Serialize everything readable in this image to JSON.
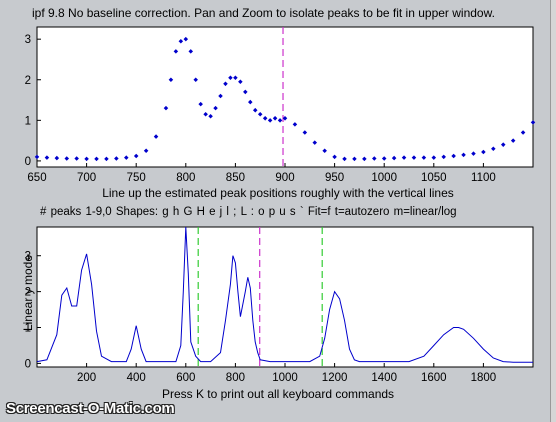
{
  "window": {
    "top_title": "ipf 9.8 No baseline correction. Pan and Zoom to isolate peaks to be fit in upper window.",
    "top_xlabel": "Line up the estimated peak positions roughly with the vertical lines",
    "bottom_title": "# peaks 1-9,0   Shapes: g h G H e j l ; L : o p u s `   Fit=f   t=autozero   m=linear/log",
    "bottom_xlabel": "Press K to print out all keyboard commands",
    "bottom_ylabel": "Linear y mode",
    "watermark": "Screencast-O-Matic.com"
  },
  "colors": {
    "background": "#c7cace",
    "axes_bg": "#ffffff",
    "signal": "#0000cc",
    "marker_magenta": "#cc33cc",
    "marker_green": "#33cc33"
  },
  "chart_data": [
    {
      "type": "scatter",
      "xlim": [
        650,
        1150
      ],
      "ylim": [
        -0.15,
        3.3
      ],
      "xticks": [
        650,
        700,
        750,
        800,
        850,
        900,
        950,
        1000,
        1050,
        1100
      ],
      "yticks": [
        0,
        1,
        2,
        3
      ],
      "vlines": [
        {
          "x": 898,
          "color": "magenta"
        }
      ],
      "series": [
        {
          "x": [
            650,
            660,
            670,
            680,
            690,
            700,
            710,
            720,
            730,
            740,
            750,
            760,
            770,
            780,
            785,
            790,
            795,
            800,
            805,
            810,
            815,
            820,
            825,
            830,
            835,
            840,
            845,
            850,
            855,
            860,
            865,
            870,
            875,
            880,
            885,
            890,
            895,
            900,
            910,
            920,
            930,
            940,
            950,
            960,
            970,
            980,
            990,
            1000,
            1010,
            1020,
            1030,
            1040,
            1050,
            1060,
            1070,
            1080,
            1090,
            1100,
            1110,
            1120,
            1130,
            1140,
            1150
          ],
          "y": [
            0.1,
            0.08,
            0.07,
            0.06,
            0.06,
            0.05,
            0.05,
            0.05,
            0.06,
            0.08,
            0.12,
            0.25,
            0.6,
            1.3,
            2.0,
            2.7,
            2.95,
            3.0,
            2.7,
            2.0,
            1.4,
            1.15,
            1.1,
            1.3,
            1.6,
            1.9,
            2.05,
            2.05,
            1.95,
            1.7,
            1.45,
            1.25,
            1.15,
            1.05,
            1.0,
            1.05,
            1.0,
            1.05,
            0.9,
            0.7,
            0.45,
            0.25,
            0.1,
            0.05,
            0.05,
            0.05,
            0.06,
            0.06,
            0.07,
            0.08,
            0.08,
            0.08,
            0.08,
            0.1,
            0.12,
            0.15,
            0.18,
            0.22,
            0.3,
            0.4,
            0.5,
            0.7,
            0.95
          ]
        }
      ]
    },
    {
      "type": "line",
      "xlim": [
        0,
        2000
      ],
      "ylim": [
        -0.1,
        3.8
      ],
      "xticks": [
        200,
        400,
        600,
        800,
        1000,
        1200,
        1400,
        1600,
        1800
      ],
      "yticks": [
        0,
        1,
        2,
        3
      ],
      "ylabel": "Linear y mode",
      "vlines": [
        {
          "x": 650,
          "color": "green"
        },
        {
          "x": 898,
          "color": "magenta"
        },
        {
          "x": 1150,
          "color": "green"
        }
      ],
      "series": [
        {
          "x": [
            0,
            40,
            80,
            100,
            120,
            140,
            160,
            180,
            200,
            220,
            240,
            260,
            300,
            360,
            380,
            400,
            420,
            440,
            500,
            560,
            580,
            590,
            600,
            610,
            620,
            640,
            660,
            700,
            740,
            760,
            780,
            790,
            800,
            810,
            820,
            840,
            850,
            860,
            870,
            880,
            890,
            900,
            940,
            1000,
            1100,
            1140,
            1160,
            1180,
            1200,
            1220,
            1240,
            1260,
            1280,
            1300,
            1400,
            1500,
            1560,
            1600,
            1640,
            1680,
            1700,
            1720,
            1760,
            1800,
            1840,
            1880,
            1920,
            2000
          ],
          "y": [
            0.05,
            0.1,
            0.8,
            1.9,
            2.1,
            1.6,
            1.6,
            2.6,
            3.05,
            2.2,
            0.9,
            0.2,
            0.05,
            0.05,
            0.4,
            1.05,
            0.4,
            0.05,
            0.05,
            0.05,
            0.5,
            2.0,
            3.8,
            2.5,
            0.6,
            0.2,
            0.05,
            0.05,
            0.3,
            1.2,
            2.2,
            3.0,
            2.8,
            2.0,
            1.3,
            2.0,
            2.4,
            2.1,
            1.2,
            0.6,
            0.3,
            0.1,
            0.05,
            0.05,
            0.05,
            0.2,
            0.7,
            1.5,
            2.0,
            1.8,
            1.2,
            0.4,
            0.1,
            0.05,
            0.05,
            0.05,
            0.2,
            0.5,
            0.8,
            1.0,
            1.0,
            0.95,
            0.7,
            0.4,
            0.15,
            0.05,
            0.03,
            0.03
          ]
        }
      ]
    }
  ]
}
